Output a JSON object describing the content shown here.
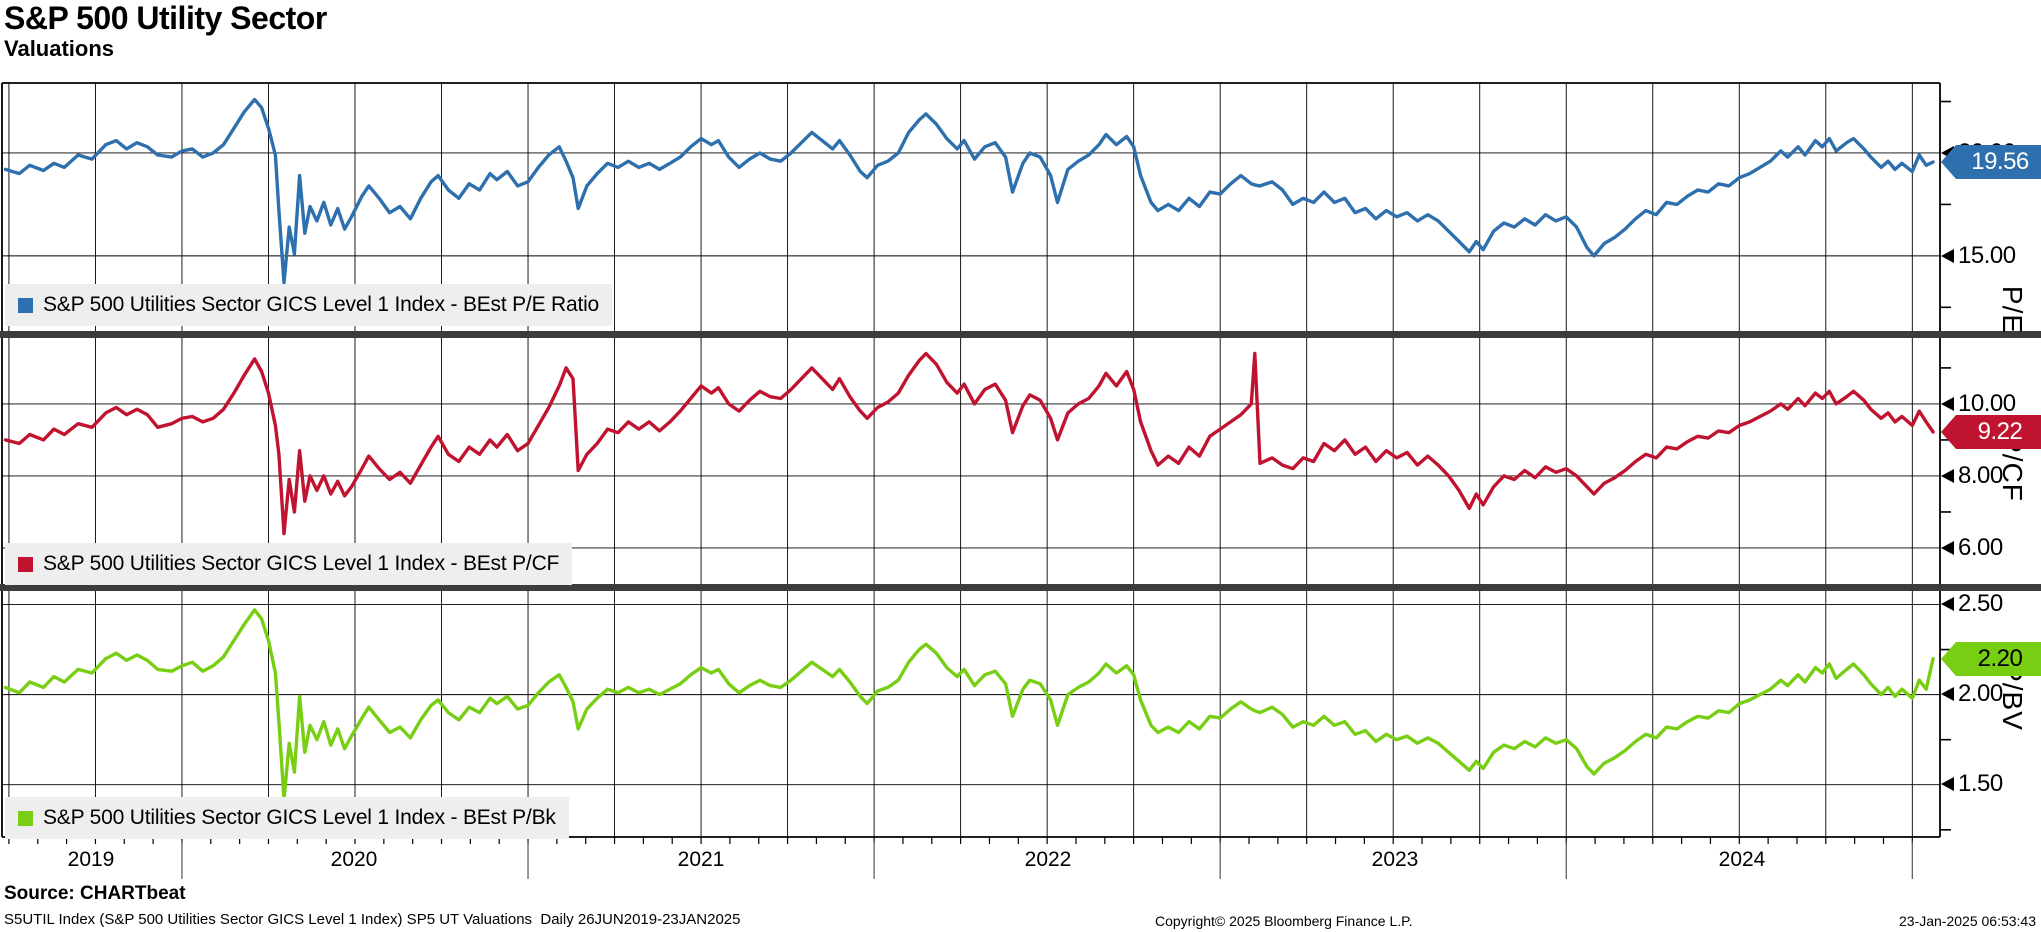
{
  "header": {
    "title": "S&P 500 Utility Sector",
    "subtitle": "Valuations"
  },
  "panels": [
    {
      "axis_title": "P/E",
      "legend": "S&P 500 Utilities Sector GICS Level 1 Index - BEst P/E Ratio",
      "last_value": "19.56",
      "color": "#2E6FAD",
      "value_text_color": "#FFFFFF",
      "ylim": [
        11.35,
        23.4
      ],
      "ticks": [
        {
          "label": "20.00",
          "value": 20
        },
        {
          "label": "15.00",
          "value": 15
        }
      ],
      "minor_ticks": [
        22.5,
        17.5,
        12.5
      ]
    },
    {
      "axis_title": "P/CF",
      "legend": "S&P 500 Utilities Sector GICS Level 1 Index - BEst P/CF",
      "last_value": "9.22",
      "color": "#C01330",
      "value_text_color": "#FFFFFF",
      "ylim": [
        5.0,
        11.83
      ],
      "ticks": [
        {
          "label": "10.00",
          "value": 10
        },
        {
          "label": "8.00",
          "value": 8
        },
        {
          "label": "6.00",
          "value": 6
        }
      ],
      "minor_ticks": [
        11,
        9,
        7
      ]
    },
    {
      "axis_title": "P/BV",
      "legend": "S&P 500 Utilities Sector GICS Level 1 Index - BEst P/Bk",
      "last_value": "2.20",
      "color": "#77CE12",
      "value_text_color": "#000000",
      "ylim": [
        1.21,
        2.575
      ],
      "ticks": [
        {
          "label": "2.50",
          "value": 2.5
        },
        {
          "label": "2.00",
          "value": 2.0
        },
        {
          "label": "1.50",
          "value": 1.5
        }
      ],
      "minor_ticks": [
        2.25,
        1.75,
        1.25
      ]
    }
  ],
  "x_axis": {
    "years": [
      "2019",
      "2020",
      "2021",
      "2022",
      "2023",
      "2024"
    ]
  },
  "footer": {
    "source": "Source: CHARTbeat",
    "description": "S5UTIL Index (S&P 500 Utilities Sector GICS Level 1 Index) SP5 UT Valuations  Daily 26JUN2019-23JAN2025",
    "copyright": "Copyright© 2025 Bloomberg Finance L.P.",
    "timestamp": "23-Jan-2025 06:53:43"
  },
  "chart_data": {
    "type": "line",
    "title": "S&P 500 Utility Sector Valuations",
    "x_unit": "decimal_year",
    "x_range": [
      2019.48,
      2025.08
    ],
    "grid": "on",
    "x": [
      2019.49,
      2019.53,
      2019.56,
      2019.6,
      2019.63,
      2019.66,
      2019.7,
      2019.74,
      2019.78,
      2019.81,
      2019.84,
      2019.87,
      2019.9,
      2019.93,
      2019.97,
      2020.0,
      2020.03,
      2020.06,
      2020.09,
      2020.12,
      2020.15,
      2020.18,
      2020.21,
      2020.23,
      2020.25,
      2020.27,
      2020.28,
      2020.295,
      2020.31,
      2020.325,
      2020.34,
      2020.355,
      2020.37,
      2020.39,
      2020.41,
      2020.43,
      2020.45,
      2020.47,
      2020.49,
      2020.52,
      2020.54,
      2020.57,
      2020.6,
      2020.63,
      2020.66,
      2020.69,
      2020.72,
      2020.74,
      2020.77,
      2020.8,
      2020.83,
      2020.86,
      2020.89,
      2020.91,
      2020.94,
      2020.97,
      2021.0,
      2021.03,
      2021.06,
      2021.09,
      2021.11,
      2021.13,
      2021.145,
      2021.17,
      2021.2,
      2021.23,
      2021.26,
      2021.29,
      2021.32,
      2021.35,
      2021.38,
      2021.41,
      2021.44,
      2021.47,
      2021.5,
      2021.53,
      2021.55,
      2021.58,
      2021.61,
      2021.64,
      2021.67,
      2021.7,
      2021.73,
      2021.76,
      2021.79,
      2021.82,
      2021.85,
      2021.88,
      2021.9,
      2021.93,
      2021.96,
      2021.98,
      2022.01,
      2022.04,
      2022.07,
      2022.1,
      2022.13,
      2022.15,
      2022.18,
      2022.21,
      2022.24,
      2022.26,
      2022.29,
      2022.32,
      2022.35,
      2022.38,
      2022.4,
      2022.43,
      2022.45,
      2022.48,
      2022.51,
      2022.53,
      2022.56,
      2022.59,
      2022.62,
      2022.65,
      2022.67,
      2022.7,
      2022.73,
      2022.75,
      2022.77,
      2022.8,
      2022.82,
      2022.85,
      2022.88,
      2022.91,
      2022.94,
      2022.97,
      2023.0,
      2023.03,
      2023.06,
      2023.09,
      2023.1,
      2023.115,
      2023.15,
      2023.18,
      2023.21,
      2023.24,
      2023.27,
      2023.3,
      2023.33,
      2023.36,
      2023.39,
      2023.42,
      2023.45,
      2023.48,
      2023.51,
      2023.54,
      2023.57,
      2023.6,
      2023.63,
      2023.66,
      2023.69,
      2023.72,
      2023.74,
      2023.76,
      2023.79,
      2023.82,
      2023.85,
      2023.88,
      2023.91,
      2023.94,
      2023.97,
      2024.0,
      2024.03,
      2024.06,
      2024.08,
      2024.11,
      2024.14,
      2024.17,
      2024.2,
      2024.23,
      2024.26,
      2024.29,
      2024.32,
      2024.35,
      2024.38,
      2024.41,
      2024.44,
      2024.47,
      2024.5,
      2024.53,
      2024.56,
      2024.59,
      2024.62,
      2024.64,
      2024.67,
      2024.69,
      2024.72,
      2024.74,
      2024.76,
      2024.78,
      2024.81,
      2024.83,
      2024.86,
      2024.88,
      2024.91,
      2024.93,
      2024.95,
      2024.97,
      2025.0,
      2025.02,
      2025.04,
      2025.06
    ],
    "series": [
      {
        "name": "S&P 500 Utilities Sector GICS Level 1 Index - BEst P/E Ratio",
        "panel": 0,
        "last": 19.56,
        "values": [
          19.2,
          19.0,
          19.4,
          19.15,
          19.5,
          19.3,
          19.9,
          19.7,
          20.4,
          20.6,
          20.2,
          20.5,
          20.3,
          19.9,
          19.8,
          20.1,
          20.2,
          19.8,
          20.0,
          20.4,
          21.2,
          22.0,
          22.6,
          22.2,
          21.2,
          19.9,
          17.2,
          13.7,
          16.4,
          15.1,
          18.9,
          16.1,
          17.4,
          16.7,
          17.6,
          16.5,
          17.3,
          16.3,
          16.9,
          17.9,
          18.4,
          17.8,
          17.1,
          17.4,
          16.8,
          17.8,
          18.6,
          18.9,
          18.2,
          17.8,
          18.5,
          18.2,
          19.0,
          18.7,
          19.1,
          18.4,
          18.6,
          19.3,
          19.9,
          20.3,
          19.6,
          18.8,
          17.3,
          18.4,
          19.0,
          19.5,
          19.3,
          19.6,
          19.3,
          19.5,
          19.2,
          19.5,
          19.8,
          20.3,
          20.7,
          20.4,
          20.6,
          19.8,
          19.3,
          19.7,
          20.0,
          19.7,
          19.6,
          20.0,
          20.5,
          21.0,
          20.6,
          20.2,
          20.6,
          19.9,
          19.1,
          18.8,
          19.4,
          19.6,
          20.0,
          21.0,
          21.6,
          21.9,
          21.4,
          20.7,
          20.2,
          20.6,
          19.7,
          20.3,
          20.5,
          19.8,
          18.1,
          19.5,
          20.0,
          19.8,
          18.9,
          17.6,
          19.2,
          19.6,
          19.9,
          20.4,
          20.9,
          20.4,
          20.8,
          20.3,
          18.9,
          17.6,
          17.2,
          17.5,
          17.2,
          17.8,
          17.4,
          18.1,
          18.0,
          18.5,
          18.9,
          18.5,
          18.45,
          18.4,
          18.6,
          18.2,
          17.5,
          17.8,
          17.6,
          18.1,
          17.6,
          17.8,
          17.1,
          17.3,
          16.8,
          17.2,
          16.9,
          17.1,
          16.7,
          17.0,
          16.7,
          16.2,
          15.7,
          15.2,
          15.7,
          15.3,
          16.2,
          16.6,
          16.4,
          16.8,
          16.5,
          17.0,
          16.7,
          16.9,
          16.4,
          15.4,
          15.0,
          15.6,
          15.9,
          16.3,
          16.8,
          17.2,
          17.0,
          17.6,
          17.5,
          17.9,
          18.2,
          18.1,
          18.5,
          18.4,
          18.8,
          19.0,
          19.3,
          19.6,
          20.1,
          19.8,
          20.3,
          19.9,
          20.6,
          20.3,
          20.7,
          20.1,
          20.5,
          20.7,
          20.2,
          19.8,
          19.3,
          19.6,
          19.2,
          19.5,
          19.1,
          19.9,
          19.4,
          19.56
        ]
      },
      {
        "name": "S&P 500 Utilities Sector GICS Level 1 Index - BEst P/CF",
        "panel": 1,
        "last": 9.22,
        "values": [
          9.0,
          8.9,
          9.15,
          9.0,
          9.3,
          9.15,
          9.45,
          9.35,
          9.75,
          9.9,
          9.7,
          9.85,
          9.7,
          9.35,
          9.45,
          9.6,
          9.65,
          9.5,
          9.6,
          9.85,
          10.3,
          10.8,
          11.25,
          10.9,
          10.3,
          9.4,
          8.6,
          6.4,
          7.9,
          7.0,
          8.7,
          7.3,
          8.0,
          7.6,
          8.0,
          7.5,
          7.85,
          7.45,
          7.7,
          8.2,
          8.55,
          8.2,
          7.9,
          8.1,
          7.8,
          8.3,
          8.8,
          9.1,
          8.6,
          8.4,
          8.8,
          8.6,
          9.0,
          8.8,
          9.15,
          8.7,
          8.9,
          9.4,
          9.9,
          10.5,
          11.0,
          10.7,
          8.15,
          8.6,
          8.9,
          9.3,
          9.2,
          9.5,
          9.3,
          9.5,
          9.25,
          9.5,
          9.8,
          10.15,
          10.5,
          10.3,
          10.45,
          10.0,
          9.8,
          10.1,
          10.35,
          10.2,
          10.15,
          10.4,
          10.7,
          11.0,
          10.7,
          10.4,
          10.7,
          10.2,
          9.8,
          9.6,
          9.9,
          10.05,
          10.3,
          10.8,
          11.2,
          11.4,
          11.1,
          10.6,
          10.3,
          10.55,
          10.0,
          10.4,
          10.55,
          10.1,
          9.2,
          9.95,
          10.25,
          10.1,
          9.6,
          9.0,
          9.75,
          10.0,
          10.15,
          10.5,
          10.85,
          10.5,
          10.9,
          10.4,
          9.5,
          8.7,
          8.3,
          8.55,
          8.35,
          8.8,
          8.55,
          9.1,
          9.3,
          9.5,
          9.7,
          10.0,
          11.4,
          8.35,
          8.5,
          8.3,
          8.2,
          8.5,
          8.4,
          8.9,
          8.7,
          9.0,
          8.6,
          8.8,
          8.4,
          8.7,
          8.5,
          8.65,
          8.3,
          8.55,
          8.3,
          8.0,
          7.6,
          7.1,
          7.5,
          7.2,
          7.7,
          8.0,
          7.9,
          8.15,
          7.95,
          8.25,
          8.1,
          8.2,
          8.0,
          7.7,
          7.5,
          7.8,
          7.95,
          8.15,
          8.4,
          8.6,
          8.5,
          8.8,
          8.75,
          8.95,
          9.1,
          9.05,
          9.25,
          9.2,
          9.4,
          9.5,
          9.65,
          9.8,
          10.0,
          9.85,
          10.15,
          9.95,
          10.3,
          10.15,
          10.35,
          10.0,
          10.2,
          10.35,
          10.1,
          9.85,
          9.6,
          9.75,
          9.5,
          9.65,
          9.4,
          9.8,
          9.5,
          9.22
        ]
      },
      {
        "name": "S&P 500 Utilities Sector GICS Level 1 Index - BEst P/Bk",
        "panel": 2,
        "last": 2.2,
        "values": [
          2.04,
          2.01,
          2.07,
          2.04,
          2.1,
          2.07,
          2.14,
          2.12,
          2.2,
          2.23,
          2.19,
          2.22,
          2.19,
          2.14,
          2.13,
          2.16,
          2.18,
          2.13,
          2.16,
          2.21,
          2.3,
          2.39,
          2.47,
          2.42,
          2.3,
          2.12,
          1.85,
          1.42,
          1.73,
          1.57,
          1.99,
          1.68,
          1.83,
          1.75,
          1.85,
          1.72,
          1.81,
          1.7,
          1.77,
          1.87,
          1.93,
          1.86,
          1.79,
          1.82,
          1.76,
          1.86,
          1.94,
          1.97,
          1.9,
          1.86,
          1.93,
          1.9,
          1.98,
          1.95,
          1.99,
          1.92,
          1.94,
          2.01,
          2.07,
          2.11,
          2.04,
          1.96,
          1.81,
          1.92,
          1.98,
          2.03,
          2.01,
          2.04,
          2.01,
          2.03,
          2.0,
          2.03,
          2.06,
          2.11,
          2.15,
          2.12,
          2.14,
          2.06,
          2.01,
          2.05,
          2.08,
          2.05,
          2.04,
          2.08,
          2.13,
          2.18,
          2.14,
          2.1,
          2.14,
          2.07,
          1.99,
          1.95,
          2.02,
          2.04,
          2.08,
          2.18,
          2.25,
          2.28,
          2.23,
          2.15,
          2.1,
          2.14,
          2.05,
          2.11,
          2.13,
          2.06,
          1.88,
          2.03,
          2.08,
          2.06,
          1.97,
          1.83,
          2.0,
          2.04,
          2.07,
          2.12,
          2.17,
          2.12,
          2.16,
          2.11,
          1.97,
          1.83,
          1.79,
          1.82,
          1.79,
          1.85,
          1.81,
          1.88,
          1.87,
          1.92,
          1.96,
          1.92,
          1.91,
          1.9,
          1.93,
          1.89,
          1.82,
          1.85,
          1.83,
          1.88,
          1.83,
          1.85,
          1.78,
          1.8,
          1.74,
          1.78,
          1.75,
          1.77,
          1.73,
          1.76,
          1.73,
          1.68,
          1.63,
          1.58,
          1.63,
          1.59,
          1.68,
          1.72,
          1.7,
          1.74,
          1.71,
          1.76,
          1.73,
          1.75,
          1.7,
          1.6,
          1.56,
          1.62,
          1.65,
          1.69,
          1.74,
          1.78,
          1.76,
          1.82,
          1.81,
          1.85,
          1.88,
          1.87,
          1.91,
          1.9,
          1.95,
          1.97,
          2.0,
          2.03,
          2.08,
          2.05,
          2.11,
          2.07,
          2.15,
          2.12,
          2.17,
          2.09,
          2.14,
          2.17,
          2.11,
          2.06,
          2.0,
          2.04,
          1.99,
          2.03,
          1.98,
          2.08,
          2.03,
          2.2
        ]
      }
    ]
  }
}
